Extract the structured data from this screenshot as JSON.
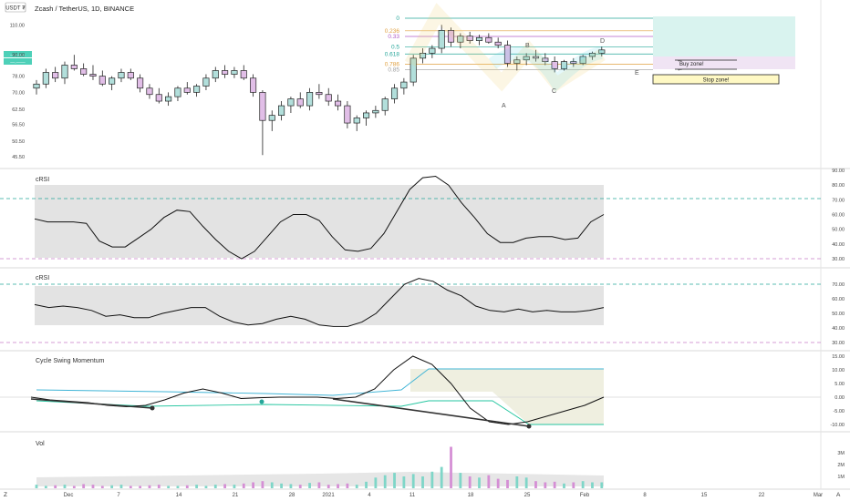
{
  "header": {
    "currency_badge": "USDT ₮",
    "title": "Zcash / TetherUS, 1D, BINANCE",
    "price_tag_1": "—.——",
    "price_tag_2": "—.——"
  },
  "main_axis": {
    "ticks": [
      "110.00",
      "90.00",
      "78.00",
      "70.00",
      "62.50",
      "56.50",
      "50.50",
      "45.50"
    ]
  },
  "fib_levels": [
    "0",
    "0.236",
    "0.33",
    "0.5",
    "0.618",
    "0.786",
    "0.85"
  ],
  "pattern_points": [
    "A",
    "B",
    "C",
    "D",
    "E"
  ],
  "zones": {
    "buy_label": "Buy zone!",
    "stop_label": "Stop zone!"
  },
  "panels": {
    "crsi1": {
      "title": "cRSI",
      "ticks": [
        "90.00",
        "80.00",
        "70.00",
        "60.00",
        "50.00",
        "40.00",
        "30.00"
      ]
    },
    "crsi2": {
      "title": "cRSI",
      "ticks": [
        "70.00",
        "60.00",
        "50.00",
        "40.00",
        "30.00"
      ]
    },
    "swing": {
      "title": "Cycle Swing Momentum",
      "ticks": [
        "15.00",
        "10.00",
        "5.00",
        "0.00",
        "-5.00",
        "-10.00"
      ]
    },
    "vol": {
      "title": "Vol",
      "ticks": [
        "3M",
        "2M",
        "1M"
      ]
    }
  },
  "time_axis": [
    "Dec",
    "7",
    "14",
    "21",
    "28",
    "2021",
    "4",
    "11",
    "18",
    "25",
    "Feb",
    "8",
    "15",
    "22",
    "Mar"
  ],
  "corner": {
    "left": "Z",
    "right": "A"
  },
  "colors": {
    "bull": "#26a69a",
    "bull_fill": "#b2dfdb",
    "bear": "#a464a4",
    "bear_fill": "#e1bee7",
    "crsi_band": "#e3e3e3",
    "swing_blue": "#3fb4d6",
    "swing_green": "#26c6a0",
    "overbought": "#26a69a",
    "oversold": "#c77dc7"
  },
  "chart_data": {
    "type": "candlestick",
    "series": [
      {
        "name": "price",
        "values": [
          [
            72,
            76,
            69,
            74
          ],
          [
            74,
            82,
            72,
            80
          ],
          [
            80,
            83,
            75,
            77
          ],
          [
            77,
            86,
            74,
            84
          ],
          [
            84,
            90,
            81,
            82
          ],
          [
            82,
            85,
            78,
            79
          ],
          [
            79,
            84,
            76,
            78
          ],
          [
            78,
            81,
            73,
            74
          ],
          [
            74,
            78,
            71,
            77
          ],
          [
            77,
            82,
            75,
            80
          ],
          [
            80,
            82,
            76,
            77
          ],
          [
            77,
            79,
            70,
            72
          ],
          [
            72,
            74,
            67,
            69
          ],
          [
            69,
            72,
            65,
            66
          ],
          [
            66,
            70,
            64,
            68
          ],
          [
            68,
            73,
            66,
            72
          ],
          [
            72,
            75,
            69,
            70
          ],
          [
            70,
            74,
            68,
            73
          ],
          [
            73,
            79,
            71,
            77
          ],
          [
            77,
            83,
            75,
            81
          ],
          [
            81,
            84,
            77,
            79
          ],
          [
            79,
            83,
            77,
            81
          ],
          [
            81,
            84,
            76,
            77
          ],
          [
            77,
            79,
            68,
            70
          ],
          [
            70,
            71,
            46,
            58
          ],
          [
            58,
            62,
            54,
            60
          ],
          [
            60,
            66,
            58,
            64
          ],
          [
            64,
            68,
            61,
            67
          ],
          [
            67,
            70,
            63,
            64
          ],
          [
            64,
            72,
            62,
            70
          ],
          [
            70,
            74,
            67,
            69
          ],
          [
            69,
            72,
            64,
            66
          ],
          [
            66,
            69,
            62,
            64
          ],
          [
            64,
            66,
            55,
            57
          ],
          [
            57,
            60,
            54,
            59
          ],
          [
            59,
            62,
            56,
            61
          ],
          [
            61,
            64,
            59,
            62
          ],
          [
            62,
            68,
            60,
            67
          ],
          [
            67,
            74,
            65,
            72
          ],
          [
            72,
            77,
            69,
            75
          ],
          [
            75,
            90,
            73,
            88
          ],
          [
            88,
            94,
            85,
            91
          ],
          [
            91,
            96,
            88,
            94
          ],
          [
            94,
            110,
            91,
            106
          ],
          [
            106,
            108,
            95,
            98
          ],
          [
            98,
            104,
            94,
            102
          ],
          [
            102,
            105,
            97,
            99
          ],
          [
            99,
            103,
            96,
            101
          ],
          [
            101,
            104,
            97,
            98
          ],
          [
            98,
            101,
            94,
            96
          ],
          [
            96,
            99,
            83,
            85
          ],
          [
            85,
            89,
            81,
            87
          ],
          [
            87,
            91,
            84,
            89
          ],
          [
            89,
            93,
            86,
            88
          ],
          [
            88,
            91,
            84,
            86
          ],
          [
            86,
            89,
            80,
            82
          ],
          [
            82,
            87,
            81,
            86
          ],
          [
            86,
            88,
            83,
            85
          ],
          [
            85,
            90,
            84,
            89
          ],
          [
            89,
            92,
            87,
            91
          ],
          [
            91,
            95,
            89,
            93
          ]
        ]
      }
    ],
    "fib_values": [
      115,
      105.7,
      101.8,
      95,
      90.5,
      84.5,
      81.5
    ],
    "crsi1": [
      57,
      55,
      55,
      55,
      54,
      42,
      38,
      38,
      44,
      50,
      58,
      63,
      62,
      52,
      43,
      35,
      30,
      35,
      45,
      55,
      60,
      60,
      56,
      45,
      36,
      35,
      37,
      47,
      62,
      77,
      85,
      86,
      80,
      68,
      58,
      47,
      41,
      41,
      44,
      45,
      45,
      43,
      44,
      55,
      60
    ],
    "crsi2": [
      56,
      54,
      55,
      54,
      52,
      48,
      49,
      47,
      47,
      50,
      52,
      54,
      54,
      48,
      44,
      42,
      43,
      46,
      48,
      46,
      42,
      41,
      41,
      44,
      50,
      60,
      70,
      74,
      72,
      66,
      62,
      55,
      52,
      51,
      53,
      51,
      52,
      51,
      51,
      52,
      54
    ],
    "swing": [
      0,
      -1,
      -1.5,
      -2,
      -3,
      -3.5,
      -3,
      -1,
      1.5,
      3,
      1.5,
      -0.5,
      -0.2,
      0,
      0,
      0,
      -0.5,
      0,
      3,
      10,
      15,
      12,
      5,
      -4,
      -9,
      -10,
      -9,
      -7,
      -5,
      -3,
      0
    ],
    "volume": [
      0.3,
      0.2,
      0.25,
      0.3,
      0.2,
      0.35,
      0.3,
      0.2,
      0.25,
      0.3,
      0.2,
      0.2,
      0.25,
      0.3,
      0.2,
      0.2,
      0.25,
      0.3,
      0.2,
      0.3,
      0.35,
      0.3,
      0.4,
      0.5,
      0.6,
      0.5,
      0.4,
      0.35,
      0.3,
      0.45,
      0.5,
      0.3,
      0.35,
      0.4,
      0.3,
      0.55,
      0.9,
      1.1,
      1.3,
      1.0,
      1.2,
      1.0,
      1.4,
      1.8,
      3.5,
      1.3,
      1.0,
      0.9,
      1.1,
      0.8,
      0.7,
      1.0,
      0.9,
      0.6,
      0.5,
      0.55,
      0.4,
      0.5,
      0.6,
      0.5,
      0.5
    ]
  }
}
